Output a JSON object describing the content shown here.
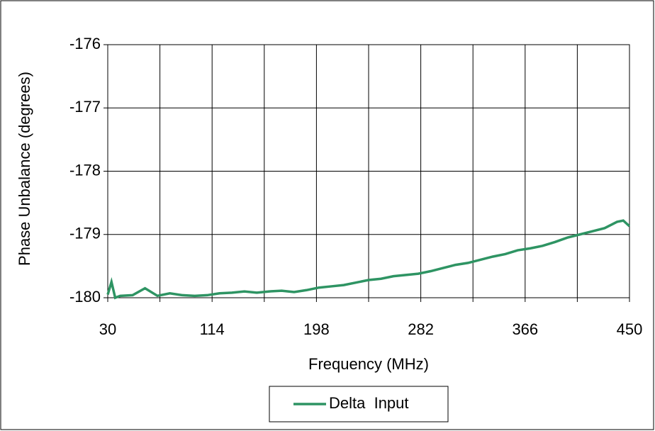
{
  "chart_data": {
    "type": "line",
    "x_label": "Frequency (MHz)",
    "y_label": "Phase Unbalance (degrees)",
    "x": [
      30,
      33,
      36,
      40,
      50,
      60,
      70,
      80,
      90,
      100,
      110,
      120,
      130,
      140,
      150,
      160,
      170,
      180,
      190,
      200,
      210,
      220,
      230,
      240,
      250,
      260,
      270,
      280,
      290,
      300,
      310,
      320,
      330,
      340,
      350,
      360,
      370,
      380,
      390,
      400,
      410,
      420,
      430,
      440,
      445,
      450
    ],
    "series": [
      {
        "name": "Delta  Input",
        "color": "#2e9463",
        "values": [
          -179.95,
          -179.75,
          -180,
          -179.97,
          -179.96,
          -179.85,
          -179.97,
          -179.93,
          -179.96,
          -179.97,
          -179.96,
          -179.93,
          -179.92,
          -179.9,
          -179.92,
          -179.9,
          -179.89,
          -179.91,
          -179.88,
          -179.84,
          -179.82,
          -179.8,
          -179.76,
          -179.72,
          -179.7,
          -179.66,
          -179.64,
          -179.62,
          -179.58,
          -179.53,
          -179.48,
          -179.45,
          -179.4,
          -179.35,
          -179.31,
          -179.25,
          -179.22,
          -179.18,
          -179.12,
          -179.05,
          -179.0,
          -178.95,
          -178.9,
          -178.8,
          -178.78,
          -178.87
        ]
      }
    ],
    "xlim": [
      30,
      450
    ],
    "xticks": [
      30,
      114,
      198,
      282,
      366,
      450
    ],
    "xminor_grid": [
      72,
      156,
      240,
      324,
      408
    ],
    "ylim": [
      -180,
      -176
    ],
    "yticks": [
      -180,
      -179,
      -178,
      -177,
      -176
    ],
    "grid": true,
    "legend": "bottom"
  }
}
